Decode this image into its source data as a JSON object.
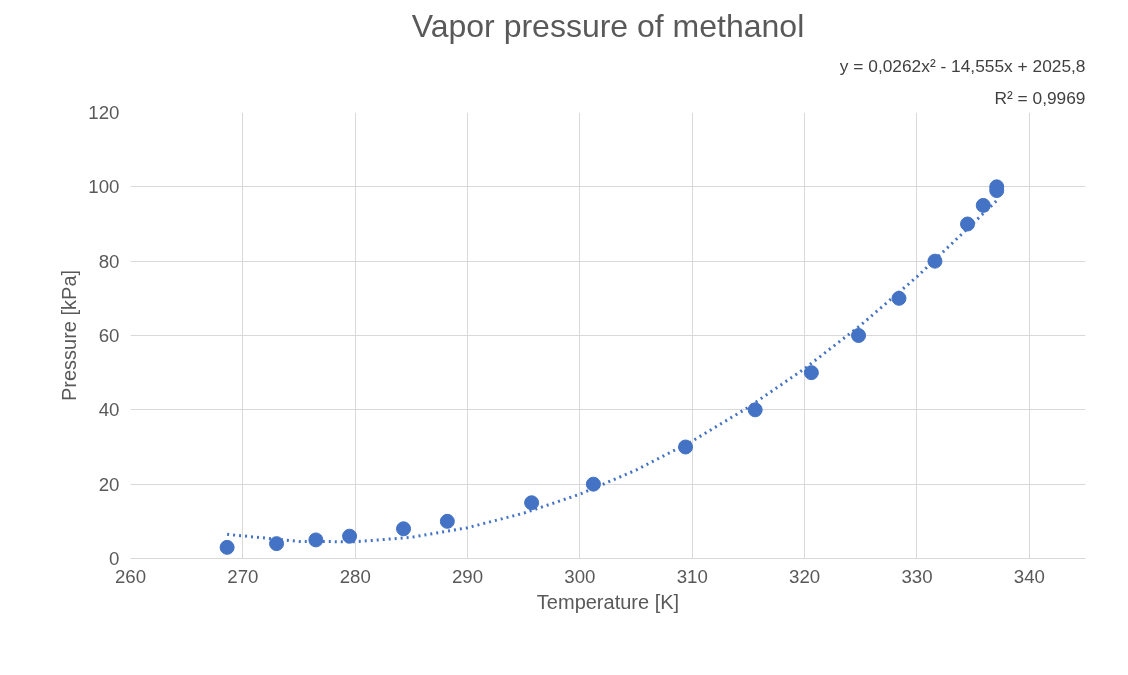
{
  "chart_data": {
    "type": "scatter",
    "title": "Vapor pressure of methanol",
    "xlabel": "Temperature [K]",
    "ylabel": "Pressure [kPa]",
    "annotations": [
      "y = 0,0262x² - 14,555x + 2025,8",
      "R² = 0,9969"
    ],
    "xlim": [
      260,
      345
    ],
    "xticks": [
      260,
      270,
      280,
      290,
      300,
      310,
      320,
      330,
      340
    ],
    "ylim": [
      0,
      120
    ],
    "yticks": [
      0,
      20,
      40,
      60,
      80,
      100,
      120
    ],
    "grid": true,
    "series": [
      {
        "color": "#4472c4",
        "marker": "circle",
        "x": [
          268.6,
          273.0,
          276.5,
          279.5,
          284.3,
          288.2,
          295.7,
          301.2,
          309.4,
          315.6,
          320.6,
          324.8,
          328.4,
          331.6,
          334.5,
          335.9,
          337.1,
          337.1
        ],
        "values": [
          3,
          4,
          5,
          6,
          8,
          10,
          15,
          20,
          30,
          40,
          50,
          60,
          70,
          80,
          90,
          95,
          99,
          100
        ]
      },
      {
        "type": "line",
        "color": "#4472c4",
        "marker": "none",
        "line_style": "dotted",
        "x": [
          268.6,
          275,
          280,
          285,
          290,
          295,
          300,
          305,
          310,
          315,
          320,
          325,
          330,
          335,
          337.1
        ],
        "values": [
          6.5,
          4.6,
          4.5,
          5.7,
          8.3,
          12.2,
          17.3,
          23.8,
          31.6,
          40.7,
          51.1,
          62.8,
          75.8,
          90.2,
          96.3
        ]
      }
    ]
  }
}
